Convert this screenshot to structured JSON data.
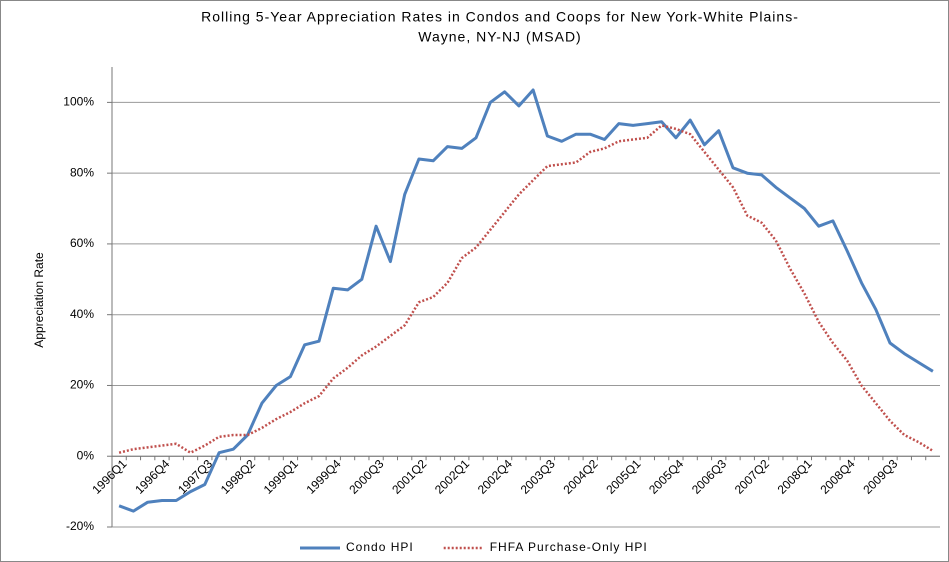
{
  "chart_data": {
    "type": "line",
    "title": [
      "Rolling 5-Year Appreciation Rates in Condos and Coops for New York-White Plains-",
      "Wayne, NY-NJ (MSAD)"
    ],
    "y_label": "Appreciation Rate",
    "categories": [
      "1996Q1",
      null,
      null,
      "1996Q4",
      null,
      null,
      "1997Q3",
      null,
      null,
      "1998Q2",
      null,
      null,
      "1999Q1",
      null,
      null,
      "1999Q4",
      null,
      null,
      "2000Q3",
      null,
      null,
      "2001Q2",
      null,
      null,
      "2002Q1",
      null,
      null,
      "2002Q4",
      null,
      null,
      "2003Q3",
      null,
      null,
      "2004Q2",
      null,
      null,
      "2005Q1",
      null,
      null,
      "2005Q4",
      null,
      null,
      "2006Q3",
      null,
      null,
      "2007Q2",
      null,
      null,
      "2008Q1",
      null,
      null,
      "2008Q4",
      null,
      null,
      "2009Q3",
      null,
      null,
      null
    ],
    "series": [
      {
        "name": "Condo HPI",
        "color": "#4f81bd",
        "dash": false,
        "values": [
          -14,
          -15.5,
          -13,
          -12.5,
          -12.5,
          -10,
          -8,
          1,
          2,
          6,
          15,
          20,
          22.5,
          31.5,
          32.5,
          47.5,
          47,
          50,
          65,
          55,
          74,
          84,
          83.5,
          87.5,
          87,
          90,
          100,
          103,
          99,
          103.5,
          90.5,
          89,
          91,
          91,
          89.5,
          94,
          93.5,
          94,
          94.5,
          90,
          95,
          88,
          92,
          81.5,
          80,
          79.5,
          76,
          73,
          70,
          65,
          66.5,
          58,
          49,
          41.5,
          32,
          29,
          26.5,
          24
        ]
      },
      {
        "name": "FHFA Purchase-Only HPI",
        "color": "#c0504d",
        "dash": true,
        "values": [
          1,
          2,
          2.5,
          3,
          3.5,
          1,
          3,
          5.5,
          6,
          6,
          8,
          10.5,
          12.5,
          15,
          17,
          22,
          25,
          28.5,
          31,
          34,
          37,
          43.5,
          45,
          49,
          56,
          59,
          64,
          69,
          74,
          78,
          82,
          82.5,
          83,
          86,
          87,
          89,
          89.5,
          90,
          93.5,
          92.5,
          91,
          86,
          81,
          76,
          68,
          66,
          61,
          53,
          46,
          38,
          32,
          27,
          20,
          15,
          10,
          6,
          4,
          1.5
        ]
      }
    ],
    "ylim": [
      -20,
      110
    ],
    "yticks": [
      {
        "value": -20,
        "label": "-20%"
      },
      {
        "value": 0,
        "label": "0%"
      },
      {
        "value": 20,
        "label": "20%"
      },
      {
        "value": 40,
        "label": "40%"
      },
      {
        "value": 60,
        "label": "60%"
      },
      {
        "value": 80,
        "label": "80%"
      },
      {
        "value": 100,
        "label": "100%"
      }
    ],
    "grid": true,
    "legend": "bottom"
  }
}
